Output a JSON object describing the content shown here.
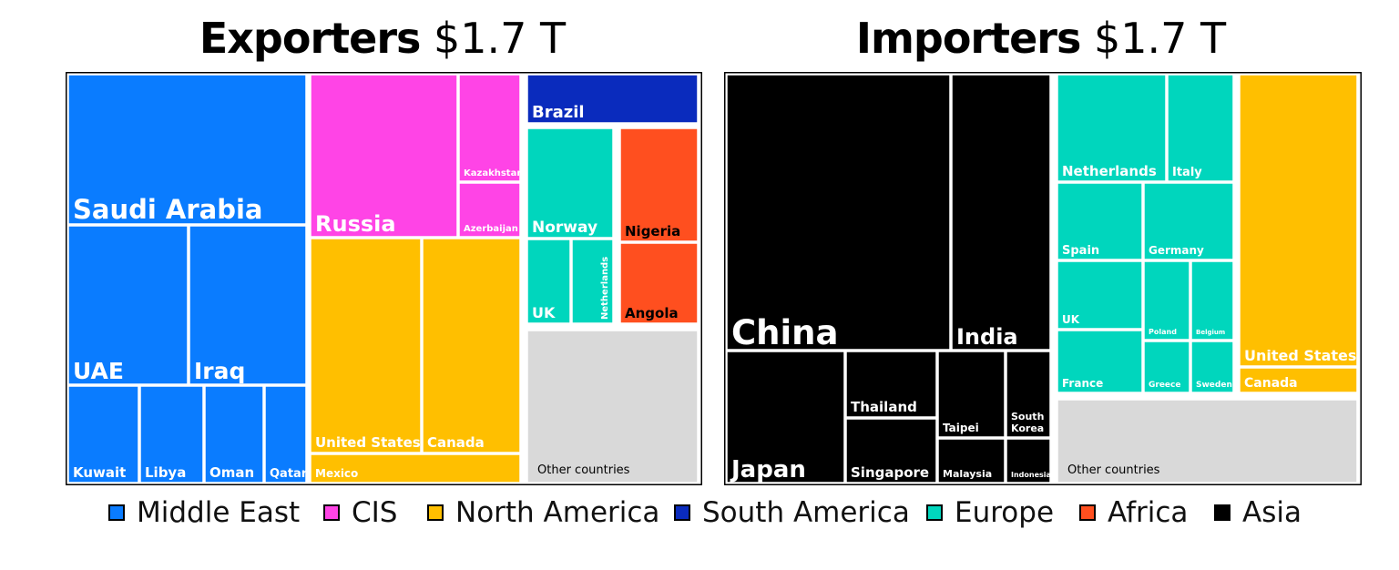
{
  "colors": {
    "Middle East": "#0a7cff",
    "CIS": "#ff44e6",
    "North America": "#ffbf00",
    "South America": "#0a2bbd",
    "Europe": "#00d6bd",
    "Africa": "#ff4f1f",
    "Asia": "#000000",
    "Other": "#d9d9d9"
  },
  "legend": [
    "Middle East",
    "CIS",
    "North America",
    "South America",
    "Europe",
    "Africa",
    "Asia"
  ],
  "chart_data": [
    {
      "type": "treemap",
      "title": "Exporters",
      "total": "$1.7 T",
      "cells": [
        {
          "label": "Saudi Arabia",
          "group": "Middle East"
        },
        {
          "label": "UAE",
          "group": "Middle East"
        },
        {
          "label": "Iraq",
          "group": "Middle East"
        },
        {
          "label": "Kuwait",
          "group": "Middle East"
        },
        {
          "label": "Libya",
          "group": "Middle East"
        },
        {
          "label": "Oman",
          "group": "Middle East"
        },
        {
          "label": "Qatar",
          "group": "Middle East"
        },
        {
          "label": "Russia",
          "group": "CIS"
        },
        {
          "label": "Kazakhstan",
          "group": "CIS"
        },
        {
          "label": "Azerbaijan",
          "group": "CIS"
        },
        {
          "label": "United States",
          "group": "North America"
        },
        {
          "label": "Canada",
          "group": "North America"
        },
        {
          "label": "Mexico",
          "group": "North America"
        },
        {
          "label": "Brazil",
          "group": "South America"
        },
        {
          "label": "Norway",
          "group": "Europe"
        },
        {
          "label": "UK",
          "group": "Europe"
        },
        {
          "label": "Netherlands",
          "group": "Europe"
        },
        {
          "label": "Nigeria",
          "group": "Africa"
        },
        {
          "label": "Angola",
          "group": "Africa"
        },
        {
          "label": "Other countries",
          "group": "Other"
        }
      ]
    },
    {
      "type": "treemap",
      "title": "Importers",
      "total": "$1.7 T",
      "cells": [
        {
          "label": "China",
          "group": "Asia"
        },
        {
          "label": "India",
          "group": "Asia"
        },
        {
          "label": "Japan",
          "group": "Asia"
        },
        {
          "label": "Thailand",
          "group": "Asia"
        },
        {
          "label": "Singapore",
          "group": "Asia"
        },
        {
          "label": "Taipei",
          "group": "Asia"
        },
        {
          "label": "Malaysia",
          "group": "Asia"
        },
        {
          "label": "South Korea",
          "group": "Asia"
        },
        {
          "label": "Indonesia",
          "group": "Asia"
        },
        {
          "label": "Netherlands",
          "group": "Europe"
        },
        {
          "label": "Italy",
          "group": "Europe"
        },
        {
          "label": "Spain",
          "group": "Europe"
        },
        {
          "label": "Germany",
          "group": "Europe"
        },
        {
          "label": "UK",
          "group": "Europe"
        },
        {
          "label": "Poland",
          "group": "Europe"
        },
        {
          "label": "Belgium",
          "group": "Europe"
        },
        {
          "label": "France",
          "group": "Europe"
        },
        {
          "label": "Greece",
          "group": "Europe"
        },
        {
          "label": "Sweden",
          "group": "Europe"
        },
        {
          "label": "United States",
          "group": "North America"
        },
        {
          "label": "Canada",
          "group": "North America"
        },
        {
          "label": "Other countries",
          "group": "Other"
        }
      ]
    }
  ]
}
